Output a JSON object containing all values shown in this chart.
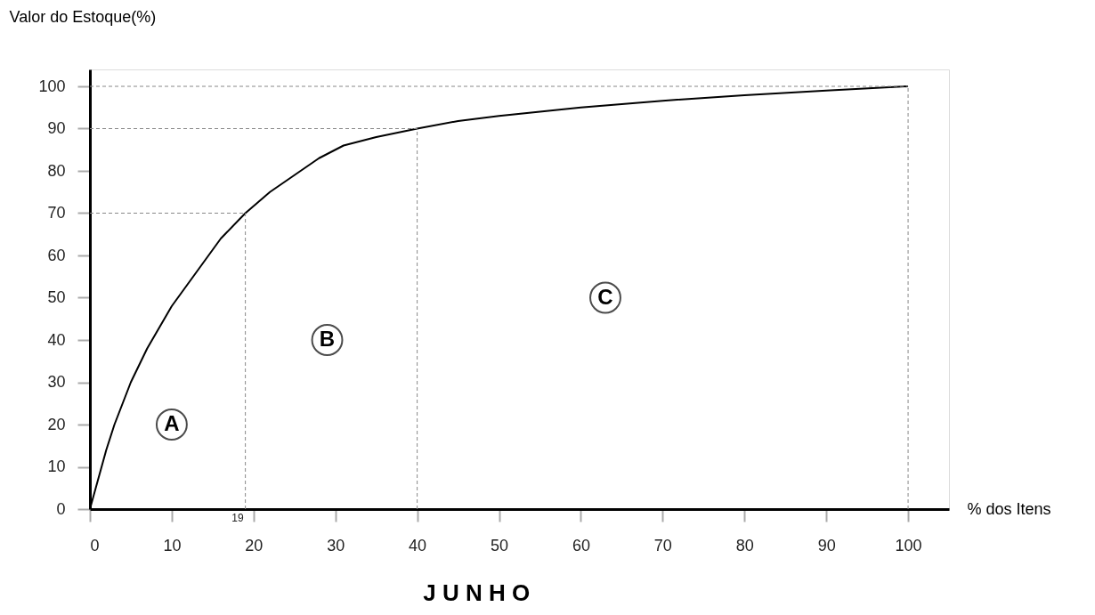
{
  "chart_data": {
    "type": "line",
    "xlabel": "% dos Itens",
    "ylabel": "Valor do Estoque(%)",
    "x": [
      0,
      1,
      2,
      3,
      5,
      7,
      10,
      13,
      16,
      19,
      22,
      25,
      28,
      31,
      35,
      40,
      45,
      50,
      55,
      60,
      70,
      80,
      90,
      100
    ],
    "series": [
      {
        "color": "#000000",
        "values": [
          0,
          7,
          14,
          20,
          30,
          38,
          48,
          56,
          64,
          70,
          75,
          79,
          83,
          86,
          88,
          90,
          91.8,
          93,
          94,
          95,
          96.6,
          97.9,
          99,
          100
        ]
      }
    ],
    "xlim": [
      0,
      105
    ],
    "ylim": [
      0,
      104
    ],
    "xticks": [
      0,
      10,
      20,
      30,
      40,
      50,
      60,
      70,
      80,
      90,
      100
    ],
    "yticks": [
      0,
      10,
      20,
      30,
      40,
      50,
      60,
      70,
      80,
      90,
      100
    ],
    "ref_lines": [
      {
        "axis": "x",
        "value": 19,
        "label": "19",
        "line_style": "dashed",
        "color": "#888888"
      },
      {
        "axis": "y",
        "value": 70,
        "line_style": "dashed",
        "color": "#888888"
      },
      {
        "axis": "x",
        "value": 40,
        "line_style": "dashed",
        "color": "#888888"
      },
      {
        "axis": "y",
        "value": 90,
        "line_style": "dashed",
        "color": "#888888"
      },
      {
        "axis": "x",
        "value": 100,
        "line_style": "dashed",
        "color": "#888888"
      },
      {
        "axis": "y",
        "value": 100,
        "line_style": "dashed",
        "color": "#888888"
      }
    ],
    "annotations": [
      {
        "text": "A",
        "x": 10,
        "y": 20
      },
      {
        "text": "B",
        "x": 29,
        "y": 40
      },
      {
        "text": "C",
        "x": 63,
        "y": 50
      },
      "J U N H O"
    ],
    "grid": false,
    "marker": "none",
    "line_style": "solid"
  }
}
